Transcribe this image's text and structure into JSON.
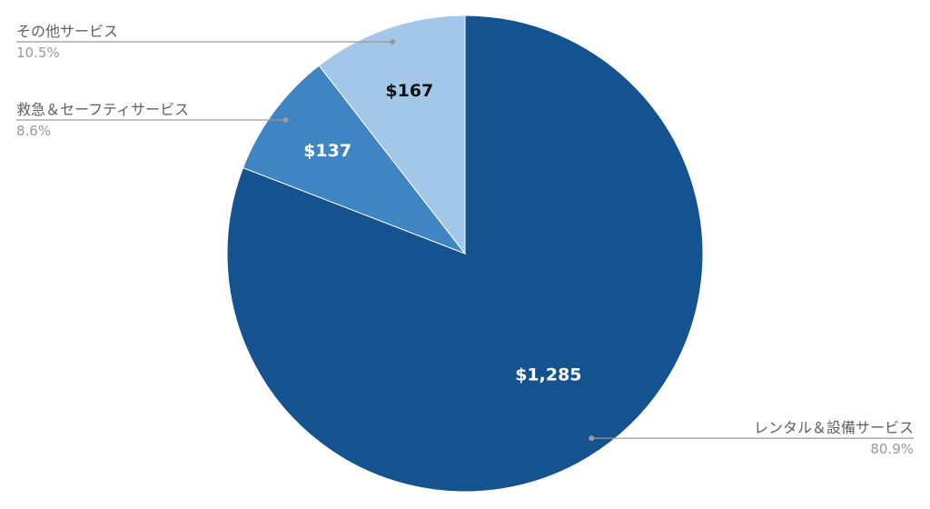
{
  "chart_data": {
    "type": "pie",
    "title": "",
    "start_angle_deg": 0,
    "direction": "clockwise",
    "slices": [
      {
        "name": "レンタル＆設備サービス",
        "value": 1285,
        "value_label": "$1,285",
        "percent_label": "80.9%",
        "color": "#14538F",
        "label_color": "#ffffff"
      },
      {
        "name": "救急＆セーフティサービス",
        "value": 137,
        "value_label": "$137",
        "percent_label": "8.6%",
        "color": "#3F84C3",
        "label_color": "#ffffff"
      },
      {
        "name": "その他サービス",
        "value": 167,
        "value_label": "$167",
        "percent_label": "10.5%",
        "color": "#A2C7E8",
        "label_color": "#111111"
      }
    ],
    "legend": {
      "placement": "outside labels with leader lines"
    }
  }
}
